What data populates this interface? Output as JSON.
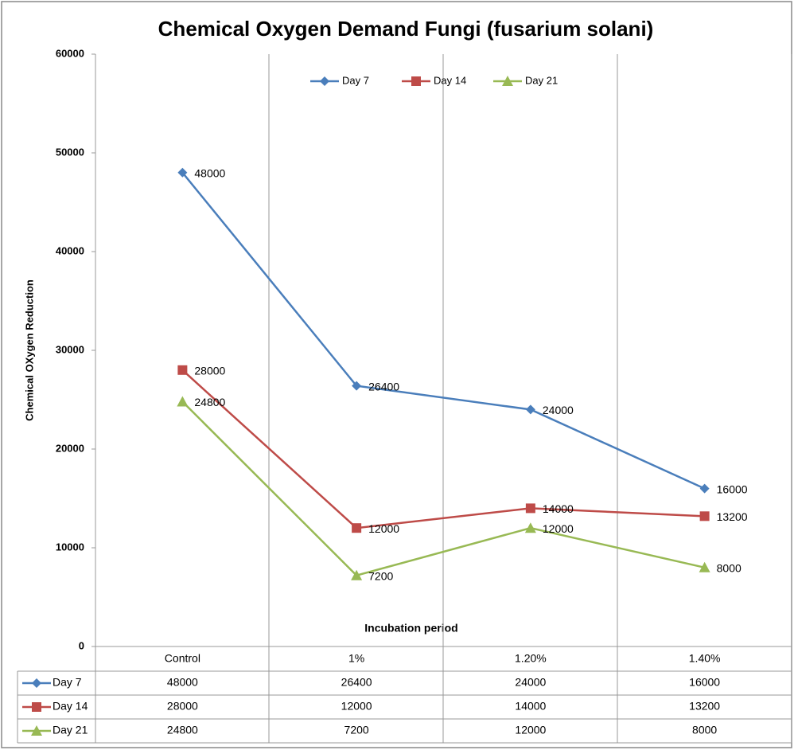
{
  "chart_data": {
    "type": "line",
    "title": "Chemical Oxygen Demand Fungi (fusarium solani)",
    "y_label": "Chemical OXygen Reduction",
    "x_label": "Incubation period",
    "categories": [
      "Control",
      "1%",
      "1.20%",
      "1.40%"
    ],
    "series": [
      {
        "name": "Day 7",
        "color": "#4a7ebb",
        "marker": "diamond",
        "values": [
          48000,
          26400,
          24000,
          16000
        ]
      },
      {
        "name": "Day 14",
        "color": "#be4b48",
        "marker": "square",
        "values": [
          28000,
          12000,
          14000,
          13200
        ]
      },
      {
        "name": "Day 21",
        "color": "#98b954",
        "marker": "triangle",
        "values": [
          24800,
          7200,
          12000,
          8000
        ]
      }
    ],
    "ylim": [
      0,
      60000
    ],
    "yticks": [
      0,
      10000,
      20000,
      30000,
      40000,
      50000,
      60000
    ],
    "grid": false,
    "legend": "top"
  }
}
